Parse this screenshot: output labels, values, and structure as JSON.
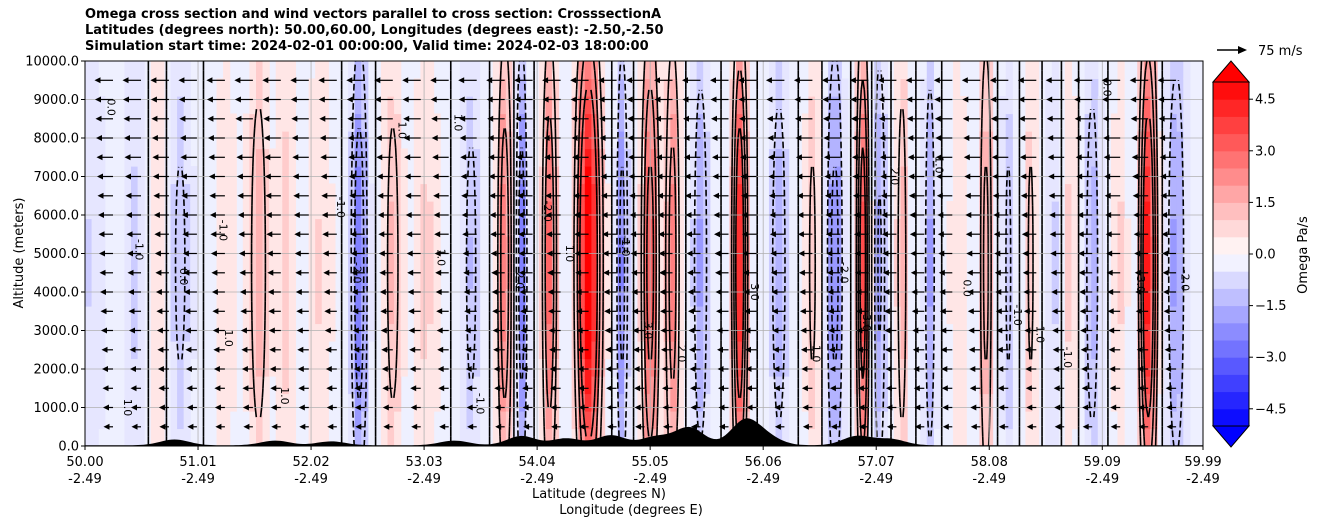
{
  "chart_data": {
    "type": "contourf",
    "title_lines": [
      "Omega cross section and wind vectors parallel to cross section: CrosssectionA",
      "Latitudes (degrees north): 50.00,60.00, Longitudes (degrees east): -2.50,-2.50",
      "Simulation start time: 2024-02-01 00:00:00, Valid time: 2024-02-03 18:00:00"
    ],
    "ylabel": "Altitude (meters)",
    "xlabel_lat": "Latitude (degrees N)",
    "xlabel_lon": "Longitude (degrees E)",
    "ylim": [
      0,
      10000
    ],
    "y_ticks": [
      0,
      1000,
      2000,
      3000,
      4000,
      5000,
      6000,
      7000,
      8000,
      9000,
      10000
    ],
    "y_tick_labels": [
      "0.0",
      "1000.0",
      "2000.0",
      "3000.0",
      "4000.0",
      "5000.0",
      "6000.0",
      "7000.0",
      "8000.0",
      "9000.0",
      "10000.0"
    ],
    "xlim": [
      50.0,
      59.99
    ],
    "x_ticks": [
      50.0,
      51.01,
      52.02,
      53.03,
      54.04,
      55.05,
      56.06,
      57.07,
      58.08,
      59.09,
      59.99
    ],
    "x_tick_lat_labels": [
      "50.00",
      "51.01",
      "52.02",
      "53.03",
      "54.04",
      "55.05",
      "56.06",
      "57.07",
      "58.08",
      "59.09",
      "59.99"
    ],
    "x_tick_lon_labels": [
      "-2.49",
      "-2.49",
      "-2.49",
      "-2.49",
      "-2.49",
      "-2.49",
      "-2.49",
      "-2.49",
      "-2.49",
      "-2.49",
      "-2.49"
    ],
    "grid": true,
    "colorbar": {
      "label": "Omega Pa/s",
      "range": [
        -5,
        5
      ],
      "tick_values": [
        4.5,
        3.0,
        1.5,
        0.0,
        -1.5,
        -3.0,
        -4.5
      ],
      "tick_labels": [
        "4.5",
        "3.0",
        "1.5",
        "0.0",
        "−1.5",
        "−3.0",
        "−4.5"
      ],
      "extend": "both",
      "colormap": "bwr"
    },
    "quiver_key": {
      "label": "75 m/s",
      "speed": 75
    },
    "contour_levels": [
      -2.0,
      -1.0,
      0.0,
      1.0,
      2.0,
      3.0
    ],
    "omega_columns": [
      {
        "lat": 50.05,
        "amp": -0.8,
        "width": 0.12
      },
      {
        "lat": 50.45,
        "amp": -0.9,
        "width": 0.1
      },
      {
        "lat": 50.65,
        "amp": 0.7,
        "width": 0.08
      },
      {
        "lat": 50.85,
        "amp": -1.2,
        "width": 0.1
      },
      {
        "lat": 51.25,
        "amp": 0.6,
        "width": 0.1
      },
      {
        "lat": 51.55,
        "amp": 1.6,
        "width": 0.09
      },
      {
        "lat": 51.8,
        "amp": 1.0,
        "width": 0.08
      },
      {
        "lat": 52.1,
        "amp": 0.8,
        "width": 0.1
      },
      {
        "lat": 52.45,
        "amp": -2.8,
        "width": 0.07
      },
      {
        "lat": 52.75,
        "amp": 1.4,
        "width": 0.08
      },
      {
        "lat": 53.05,
        "amp": 0.9,
        "width": 0.1
      },
      {
        "lat": 53.45,
        "amp": -1.3,
        "width": 0.08
      },
      {
        "lat": 53.75,
        "amp": 2.8,
        "width": 0.06
      },
      {
        "lat": 53.9,
        "amp": -2.6,
        "width": 0.05
      },
      {
        "lat": 54.15,
        "amp": 3.0,
        "width": 0.06
      },
      {
        "lat": 54.5,
        "amp": 5.5,
        "width": 0.1
      },
      {
        "lat": 54.8,
        "amp": -2.4,
        "width": 0.05
      },
      {
        "lat": 55.05,
        "amp": 3.6,
        "width": 0.07
      },
      {
        "lat": 55.25,
        "amp": 2.6,
        "width": 0.06
      },
      {
        "lat": 55.5,
        "amp": -1.8,
        "width": 0.07
      },
      {
        "lat": 55.85,
        "amp": 4.2,
        "width": 0.06
      },
      {
        "lat": 56.2,
        "amp": -1.6,
        "width": 0.08
      },
      {
        "lat": 56.5,
        "amp": 1.2,
        "width": 0.06
      },
      {
        "lat": 56.7,
        "amp": -2.4,
        "width": 0.07
      },
      {
        "lat": 56.95,
        "amp": 3.8,
        "width": 0.05
      },
      {
        "lat": 57.1,
        "amp": -2.2,
        "width": 0.05
      },
      {
        "lat": 57.3,
        "amp": 1.6,
        "width": 0.05
      },
      {
        "lat": 57.55,
        "amp": -1.8,
        "width": 0.05
      },
      {
        "lat": 57.8,
        "amp": 0.6,
        "width": 0.08
      },
      {
        "lat": 58.05,
        "amp": 2.4,
        "width": 0.05
      },
      {
        "lat": 58.25,
        "amp": -1.2,
        "width": 0.05
      },
      {
        "lat": 58.45,
        "amp": 1.2,
        "width": 0.05
      },
      {
        "lat": 58.65,
        "amp": -0.9,
        "width": 0.05
      },
      {
        "lat": 58.8,
        "amp": 0.9,
        "width": 0.05
      },
      {
        "lat": 59.0,
        "amp": -1.6,
        "width": 0.07
      },
      {
        "lat": 59.25,
        "amp": 0.8,
        "width": 0.06
      },
      {
        "lat": 59.5,
        "amp": 4.6,
        "width": 0.07
      },
      {
        "lat": 59.75,
        "amp": -2.0,
        "width": 0.08
      }
    ],
    "contour_labels": [
      {
        "lat": 50.2,
        "alt": 8800,
        "text": "0.0"
      },
      {
        "lat": 50.45,
        "alt": 5100,
        "text": "-1.0"
      },
      {
        "lat": 50.35,
        "alt": 1000,
        "text": "1.0"
      },
      {
        "lat": 50.85,
        "alt": 4400,
        "text": "0.0"
      },
      {
        "lat": 51.2,
        "alt": 5600,
        "text": "-1.0"
      },
      {
        "lat": 51.25,
        "alt": 2800,
        "text": "1.0"
      },
      {
        "lat": 51.75,
        "alt": 1300,
        "text": "1.0"
      },
      {
        "lat": 52.25,
        "alt": 6200,
        "text": "-1.0"
      },
      {
        "lat": 52.4,
        "alt": 4500,
        "text": "-2.0"
      },
      {
        "lat": 52.8,
        "alt": 8200,
        "text": "1.0"
      },
      {
        "lat": 53.15,
        "alt": 4900,
        "text": "1.0"
      },
      {
        "lat": 53.3,
        "alt": 8400,
        "text": "1.0"
      },
      {
        "lat": 53.5,
        "alt": 1100,
        "text": "-1.0"
      },
      {
        "lat": 53.85,
        "alt": 4300,
        "text": "2.0"
      },
      {
        "lat": 54.1,
        "alt": 6100,
        "text": "-2.0"
      },
      {
        "lat": 54.3,
        "alt": 5000,
        "text": "1.0"
      },
      {
        "lat": 54.8,
        "alt": 5200,
        "text": "-1.0"
      },
      {
        "lat": 55.0,
        "alt": 3000,
        "text": "3.0"
      },
      {
        "lat": 55.3,
        "alt": 2400,
        "text": "2.0"
      },
      {
        "lat": 55.95,
        "alt": 4000,
        "text": "3.0"
      },
      {
        "lat": 56.5,
        "alt": 2400,
        "text": "1.0"
      },
      {
        "lat": 56.75,
        "alt": 4500,
        "text": "-2.0"
      },
      {
        "lat": 56.95,
        "alt": 3200,
        "text": "3.0"
      },
      {
        "lat": 57.2,
        "alt": 7000,
        "text": "2.0"
      },
      {
        "lat": 57.6,
        "alt": 7300,
        "text": "1.0"
      },
      {
        "lat": 57.85,
        "alt": 4100,
        "text": "0.0"
      },
      {
        "lat": 58.3,
        "alt": 3400,
        "text": "-1.0"
      },
      {
        "lat": 58.5,
        "alt": 2900,
        "text": "1.0"
      },
      {
        "lat": 58.75,
        "alt": 2300,
        "text": "-1.0"
      },
      {
        "lat": 59.1,
        "alt": 9300,
        "text": "0.0"
      },
      {
        "lat": 59.4,
        "alt": 4200,
        "text": "3.0"
      },
      {
        "lat": 59.8,
        "alt": 4300,
        "text": "-2.0"
      }
    ],
    "terrain_peaks": [
      {
        "lat": 50.8,
        "alt": 150
      },
      {
        "lat": 51.7,
        "alt": 120
      },
      {
        "lat": 52.2,
        "alt": 100
      },
      {
        "lat": 53.3,
        "alt": 120
      },
      {
        "lat": 53.9,
        "alt": 240
      },
      {
        "lat": 54.3,
        "alt": 180
      },
      {
        "lat": 54.7,
        "alt": 260
      },
      {
        "lat": 55.1,
        "alt": 220
      },
      {
        "lat": 55.4,
        "alt": 460
      },
      {
        "lat": 55.9,
        "alt": 640
      },
      {
        "lat": 56.1,
        "alt": 180
      },
      {
        "lat": 56.9,
        "alt": 240
      },
      {
        "lat": 57.2,
        "alt": 160
      }
    ]
  }
}
